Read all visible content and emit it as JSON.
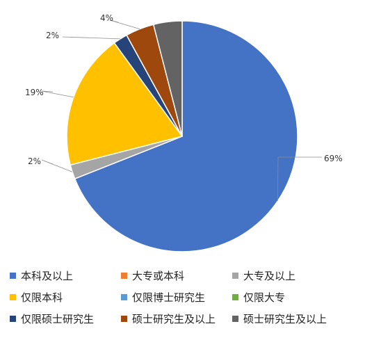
{
  "chart_data": {
    "type": "pie",
    "categories": [
      "本科及以上",
      "大专或本科",
      "大专及以上",
      "仅限本科",
      "仅限博士研究生",
      "仅限大专",
      "仅限硕士研究生",
      "硕士研究生及以上",
      "硕士研究生及以上"
    ],
    "values": [
      69,
      0,
      2,
      19,
      0,
      0,
      2,
      4,
      4
    ],
    "data_labels": [
      "69%",
      "",
      "2%",
      "19%",
      "",
      "",
      "2%",
      "4%",
      ""
    ],
    "colors": [
      "#4472c4",
      "#ed7d31",
      "#a5a5a5",
      "#ffc000",
      "#5b9bd5",
      "#70ad47",
      "#264478",
      "#9e480e",
      "#636363"
    ],
    "legend_position": "bottom",
    "title": ""
  }
}
